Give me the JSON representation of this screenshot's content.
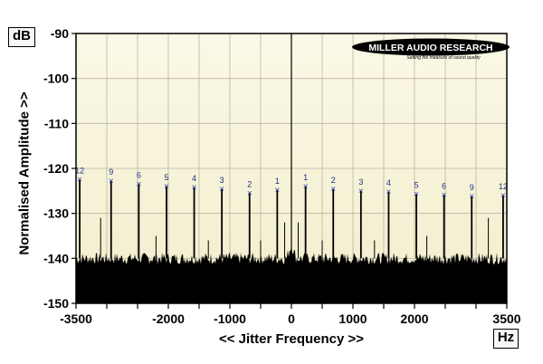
{
  "unit_y": "dB",
  "unit_x": "Hz",
  "logo": {
    "name": "MILLER AUDIO RESEARCH",
    "tagline": "Setting the measure of sound quality"
  },
  "chart_data": {
    "type": "line",
    "title": "",
    "xlabel": "<< Jitter Frequency >>",
    "ylabel": "Normalised Amplitude >>",
    "xlim": [
      -3500,
      3500
    ],
    "ylim": [
      -150,
      -90
    ],
    "x_ticks": [
      -3500,
      -3000,
      -2500,
      -2000,
      -1500,
      -1000,
      -500,
      0,
      500,
      1000,
      1500,
      2000,
      2500,
      3000,
      3500
    ],
    "x_tick_labels": [
      "-3500",
      "",
      "",
      "-2000",
      "",
      "-1000",
      "",
      "0",
      "",
      "1000",
      "",
      "2000",
      "",
      "",
      "3500"
    ],
    "y_ticks": [
      -150,
      -140,
      -130,
      -120,
      -110,
      -100,
      -90
    ],
    "y_tick_labels": [
      "-150",
      "-140",
      "-130",
      "-120",
      "-110",
      "-100",
      "-90"
    ],
    "grid": true,
    "noise_floor_db": -140,
    "carrier": {
      "x": 0,
      "y": -90
    },
    "sidebands": [
      {
        "x": -3440,
        "y": -122.5,
        "label": "12"
      },
      {
        "x": -2930,
        "y": -122.8,
        "label": "9"
      },
      {
        "x": -2480,
        "y": -123.5,
        "label": "6"
      },
      {
        "x": -2030,
        "y": -124.0,
        "label": "5"
      },
      {
        "x": -1580,
        "y": -124.2,
        "label": "4"
      },
      {
        "x": -1130,
        "y": -124.6,
        "label": "3"
      },
      {
        "x": -680,
        "y": -125.5,
        "label": "2"
      },
      {
        "x": -230,
        "y": -124.8,
        "label": "1"
      },
      {
        "x": 230,
        "y": -124.0,
        "label": "1"
      },
      {
        "x": 680,
        "y": -124.6,
        "label": "2"
      },
      {
        "x": 1130,
        "y": -125.0,
        "label": "3"
      },
      {
        "x": 1580,
        "y": -125.2,
        "label": "4"
      },
      {
        "x": 2030,
        "y": -125.7,
        "label": "5"
      },
      {
        "x": 2480,
        "y": -125.9,
        "label": "6"
      },
      {
        "x": 2930,
        "y": -126.2,
        "label": "9"
      },
      {
        "x": 3440,
        "y": -126.0,
        "label": "12"
      }
    ],
    "minor_spurs": [
      {
        "x": -3100,
        "y": -131
      },
      {
        "x": -2200,
        "y": -135
      },
      {
        "x": -1350,
        "y": -136
      },
      {
        "x": -500,
        "y": -136
      },
      {
        "x": -110,
        "y": -132
      },
      {
        "x": 110,
        "y": -132
      },
      {
        "x": 500,
        "y": -136
      },
      {
        "x": 1350,
        "y": -136
      },
      {
        "x": 2200,
        "y": -135
      },
      {
        "x": 3200,
        "y": -131
      }
    ]
  }
}
